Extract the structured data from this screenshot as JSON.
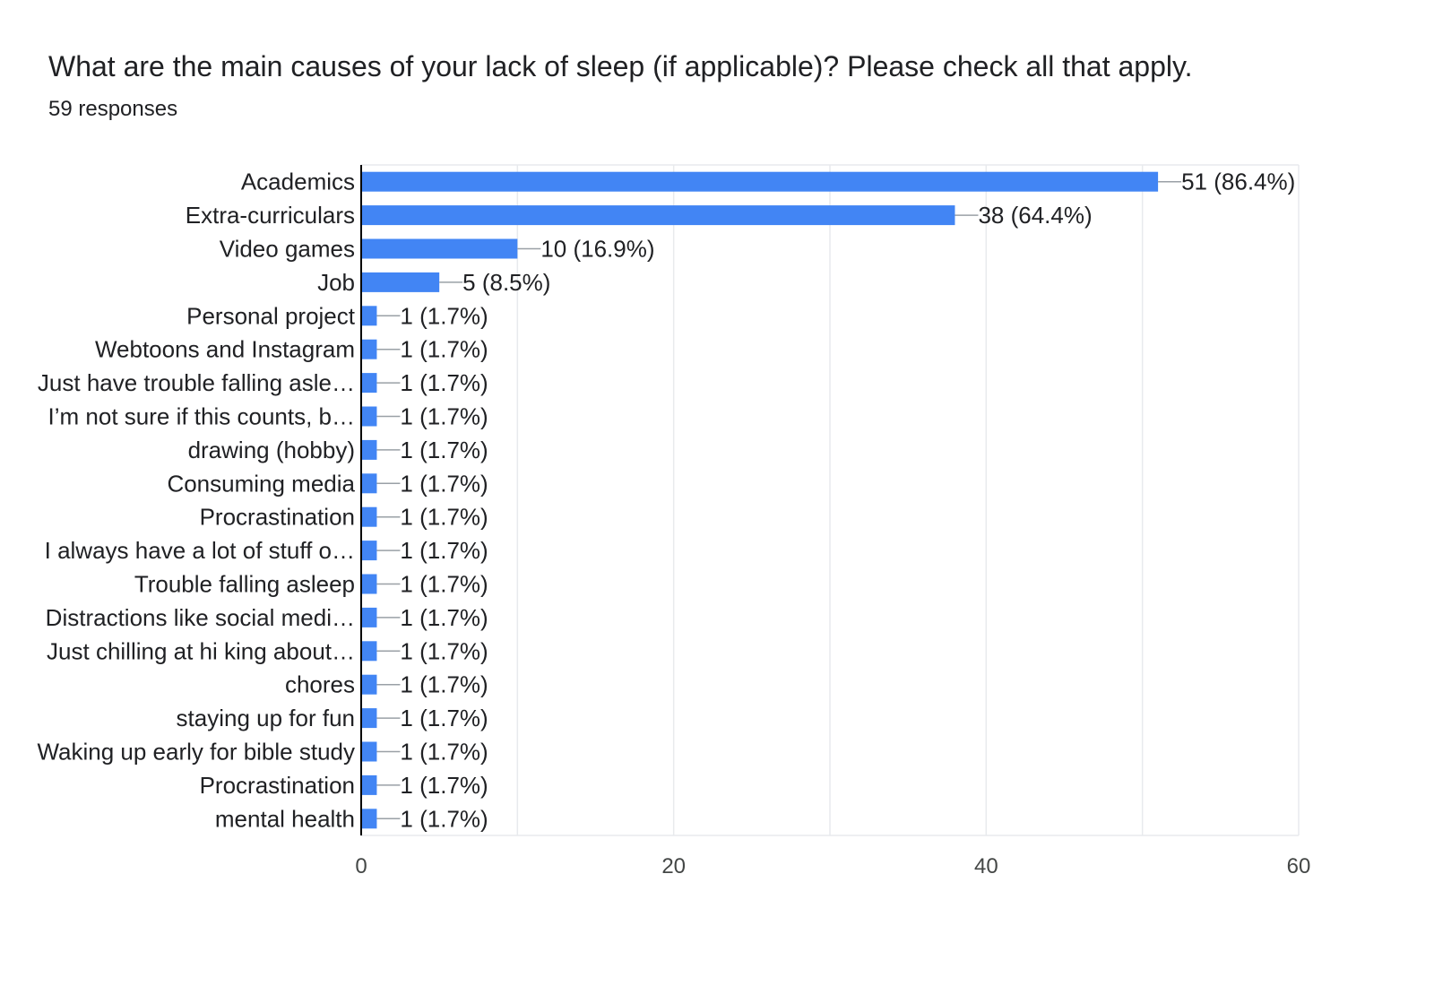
{
  "title": "What are the main causes of your lack of sleep (if applicable)? Please check all that apply.",
  "subtitle": "59 responses",
  "colors": {
    "bar": "#4285f4",
    "grid": "#e8eaed",
    "axis": "#000000",
    "leader": "#9aa0a6"
  },
  "chart_data": {
    "type": "bar",
    "orientation": "horizontal",
    "categories": [
      "Academics",
      "Extra-curriculars",
      "Video games",
      "Job",
      "Personal project",
      "Webtoons and Instagram",
      "Just have trouble falling asle…",
      "I’m not sure if this counts, b…",
      "drawing (hobby)",
      "Consuming media",
      "Procrastination",
      "I always have a lot of stuff o…",
      "Trouble falling asleep",
      "Distractions like social medi…",
      "Just chilling at hi king about…",
      "chores",
      "staying up for fun",
      "Waking up early for bible study",
      "Procrastination",
      "mental health"
    ],
    "values": [
      51,
      38,
      10,
      5,
      1,
      1,
      1,
      1,
      1,
      1,
      1,
      1,
      1,
      1,
      1,
      1,
      1,
      1,
      1,
      1
    ],
    "data_labels": [
      "51 (86.4%)",
      "38 (64.4%)",
      "10 (16.9%)",
      "5 (8.5%)",
      "1 (1.7%)",
      "1 (1.7%)",
      "1 (1.7%)",
      "1 (1.7%)",
      "1 (1.7%)",
      "1 (1.7%)",
      "1 (1.7%)",
      "1 (1.7%)",
      "1 (1.7%)",
      "1 (1.7%)",
      "1 (1.7%)",
      "1 (1.7%)",
      "1 (1.7%)",
      "1 (1.7%)",
      "1 (1.7%)",
      "1 (1.7%)"
    ],
    "xlim": [
      0,
      60
    ],
    "xticks": [
      0,
      20,
      40,
      60
    ],
    "grid": true,
    "legend": "none"
  }
}
